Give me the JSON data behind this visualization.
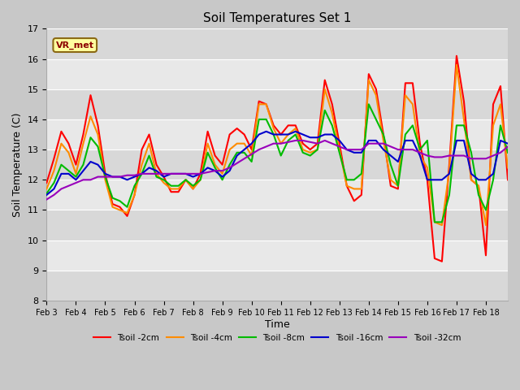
{
  "title": "Soil Temperatures Set 1",
  "xlabel": "Time",
  "ylabel": "Soil Temperature (C)",
  "ylim": [
    8.0,
    17.0
  ],
  "yticks": [
    8.0,
    9.0,
    10.0,
    11.0,
    12.0,
    13.0,
    14.0,
    15.0,
    16.0,
    17.0
  ],
  "xtick_labels": [
    "Feb 3",
    "Feb 4",
    "Feb 5",
    "Feb 6",
    "Feb 7",
    "Feb 8",
    "Feb 9",
    "Feb 10",
    "Feb 11",
    "Feb 12",
    "Feb 13",
    "Feb 14",
    "Feb 15",
    "Feb 16",
    "Feb 17",
    "Feb 18"
  ],
  "annotation_text": "VR_met",
  "band_colors": [
    "#d8d8d8",
    "#e8e8e8"
  ],
  "series": {
    "Tsoil -2cm": {
      "color": "#ff0000",
      "x": [
        0,
        0.25,
        0.5,
        0.75,
        1.0,
        1.25,
        1.5,
        1.75,
        2.0,
        2.25,
        2.5,
        2.75,
        3.0,
        3.25,
        3.5,
        3.75,
        4.0,
        4.25,
        4.5,
        4.75,
        5.0,
        5.25,
        5.5,
        5.75,
        6.0,
        6.25,
        6.5,
        6.75,
        7.0,
        7.25,
        7.5,
        7.75,
        8.0,
        8.25,
        8.5,
        8.75,
        9.0,
        9.25,
        9.5,
        9.75,
        10.0,
        10.25,
        10.5,
        10.75,
        11.0,
        11.25,
        11.5,
        11.75,
        12.0,
        12.25,
        12.5,
        12.75,
        13.0,
        13.25,
        13.5,
        13.75,
        14.0,
        14.25,
        14.5,
        14.75,
        15.0,
        15.25,
        15.5,
        15.75
      ],
      "y": [
        11.9,
        12.7,
        13.6,
        13.2,
        12.5,
        13.5,
        14.8,
        13.8,
        12.2,
        11.2,
        11.1,
        10.8,
        11.5,
        13.0,
        13.5,
        12.5,
        12.1,
        11.6,
        11.6,
        12.0,
        11.7,
        12.2,
        13.6,
        12.8,
        12.5,
        13.5,
        13.7,
        13.5,
        13.0,
        14.6,
        14.5,
        13.8,
        13.5,
        13.8,
        13.8,
        13.2,
        13.0,
        13.2,
        15.3,
        14.5,
        13.2,
        11.8,
        11.3,
        11.5,
        15.5,
        15.0,
        13.5,
        11.8,
        11.7,
        15.2,
        15.2,
        13.2,
        12.0,
        9.4,
        9.3,
        12.5,
        16.1,
        14.6,
        12.0,
        11.8,
        9.5,
        14.5,
        15.1,
        12.0
      ]
    },
    "Tsoil -4cm": {
      "color": "#ff8c00",
      "x": [
        0,
        0.25,
        0.5,
        0.75,
        1.0,
        1.25,
        1.5,
        1.75,
        2.0,
        2.25,
        2.5,
        2.75,
        3.0,
        3.25,
        3.5,
        3.75,
        4.0,
        4.25,
        4.5,
        4.75,
        5.0,
        5.25,
        5.5,
        5.75,
        6.0,
        6.25,
        6.5,
        6.75,
        7.0,
        7.25,
        7.5,
        7.75,
        8.0,
        8.25,
        8.5,
        8.75,
        9.0,
        9.25,
        9.5,
        9.75,
        10.0,
        10.25,
        10.5,
        10.75,
        11.0,
        11.25,
        11.5,
        11.75,
        12.0,
        12.25,
        12.5,
        12.75,
        13.0,
        13.25,
        13.5,
        13.75,
        14.0,
        14.25,
        14.5,
        14.75,
        15.0,
        15.25,
        15.5,
        15.75
      ],
      "y": [
        11.7,
        12.3,
        13.2,
        12.9,
        12.2,
        13.2,
        14.1,
        13.5,
        12.0,
        11.1,
        11.0,
        10.9,
        11.5,
        12.5,
        13.2,
        12.2,
        11.9,
        11.7,
        11.7,
        12.0,
        11.7,
        12.0,
        13.2,
        12.5,
        12.2,
        13.0,
        13.2,
        13.2,
        12.8,
        14.5,
        14.5,
        13.7,
        13.2,
        13.5,
        13.7,
        13.0,
        12.9,
        13.0,
        15.0,
        14.2,
        13.0,
        11.8,
        11.7,
        11.7,
        15.3,
        14.8,
        13.3,
        12.0,
        11.8,
        14.8,
        14.5,
        12.8,
        12.4,
        10.6,
        10.5,
        12.3,
        15.8,
        14.0,
        12.0,
        11.8,
        10.5,
        13.8,
        14.5,
        12.4
      ]
    },
    "Tsoil -8cm": {
      "color": "#00bb00",
      "x": [
        0,
        0.25,
        0.5,
        0.75,
        1.0,
        1.25,
        1.5,
        1.75,
        2.0,
        2.25,
        2.5,
        2.75,
        3.0,
        3.25,
        3.5,
        3.75,
        4.0,
        4.25,
        4.5,
        4.75,
        5.0,
        5.25,
        5.5,
        5.75,
        6.0,
        6.25,
        6.5,
        6.75,
        7.0,
        7.25,
        7.5,
        7.75,
        8.0,
        8.25,
        8.5,
        8.75,
        9.0,
        9.25,
        9.5,
        9.75,
        10.0,
        10.25,
        10.5,
        10.75,
        11.0,
        11.25,
        11.5,
        11.75,
        12.0,
        12.25,
        12.5,
        12.75,
        13.0,
        13.25,
        13.5,
        13.75,
        14.0,
        14.25,
        14.5,
        14.75,
        15.0,
        15.25,
        15.5,
        15.75
      ],
      "y": [
        11.55,
        11.9,
        12.5,
        12.3,
        12.1,
        12.5,
        13.4,
        13.1,
        12.1,
        11.4,
        11.3,
        11.1,
        11.8,
        12.2,
        12.8,
        12.1,
        12.0,
        11.8,
        11.8,
        12.0,
        11.8,
        12.0,
        12.9,
        12.4,
        12.0,
        12.5,
        12.9,
        12.9,
        12.6,
        14.0,
        14.0,
        13.5,
        12.8,
        13.3,
        13.5,
        12.9,
        12.8,
        13.0,
        14.3,
        13.8,
        12.9,
        12.0,
        12.0,
        12.2,
        14.5,
        14.0,
        13.5,
        12.5,
        11.8,
        13.5,
        13.8,
        13.0,
        13.3,
        10.6,
        10.6,
        11.5,
        13.8,
        13.8,
        12.9,
        11.5,
        11.0,
        12.0,
        13.8,
        12.9
      ]
    },
    "Tsoil -16cm": {
      "color": "#0000cc",
      "x": [
        0,
        0.25,
        0.5,
        0.75,
        1.0,
        1.25,
        1.5,
        1.75,
        2.0,
        2.25,
        2.5,
        2.75,
        3.0,
        3.25,
        3.5,
        3.75,
        4.0,
        4.25,
        4.5,
        4.75,
        5.0,
        5.25,
        5.5,
        5.75,
        6.0,
        6.25,
        6.5,
        6.75,
        7.0,
        7.25,
        7.5,
        7.75,
        8.0,
        8.25,
        8.5,
        8.75,
        9.0,
        9.25,
        9.5,
        9.75,
        10.0,
        10.25,
        10.5,
        10.75,
        11.0,
        11.25,
        11.5,
        11.75,
        12.0,
        12.25,
        12.5,
        12.75,
        13.0,
        13.25,
        13.5,
        13.75,
        14.0,
        14.25,
        14.5,
        14.75,
        15.0,
        15.25,
        15.5,
        15.75
      ],
      "y": [
        11.5,
        11.7,
        12.2,
        12.2,
        12.0,
        12.3,
        12.6,
        12.5,
        12.2,
        12.1,
        12.1,
        12.0,
        12.1,
        12.2,
        12.4,
        12.3,
        12.1,
        12.2,
        12.2,
        12.2,
        12.1,
        12.2,
        12.4,
        12.3,
        12.1,
        12.3,
        12.8,
        13.0,
        13.2,
        13.5,
        13.6,
        13.5,
        13.5,
        13.5,
        13.6,
        13.5,
        13.4,
        13.4,
        13.5,
        13.5,
        13.3,
        13.0,
        12.9,
        12.9,
        13.3,
        13.3,
        13.0,
        12.8,
        12.6,
        13.3,
        13.3,
        12.8,
        12.0,
        12.0,
        12.0,
        12.2,
        13.3,
        13.3,
        12.2,
        12.0,
        12.0,
        12.2,
        13.3,
        13.2
      ]
    },
    "Tsoil -32cm": {
      "color": "#9900bb",
      "x": [
        0,
        0.25,
        0.5,
        0.75,
        1.0,
        1.25,
        1.5,
        1.75,
        2.0,
        2.25,
        2.5,
        2.75,
        3.0,
        3.25,
        3.5,
        3.75,
        4.0,
        4.25,
        4.5,
        4.75,
        5.0,
        5.25,
        5.5,
        5.75,
        6.0,
        6.25,
        6.5,
        6.75,
        7.0,
        7.25,
        7.5,
        7.75,
        8.0,
        8.25,
        8.5,
        8.75,
        9.0,
        9.25,
        9.5,
        9.75,
        10.0,
        10.25,
        10.5,
        10.75,
        11.0,
        11.25,
        11.5,
        11.75,
        12.0,
        12.25,
        12.5,
        12.75,
        13.0,
        13.25,
        13.5,
        13.75,
        14.0,
        14.25,
        14.5,
        14.75,
        15.0,
        15.25,
        15.5,
        15.75
      ],
      "y": [
        11.35,
        11.5,
        11.7,
        11.8,
        11.9,
        12.0,
        12.0,
        12.1,
        12.1,
        12.1,
        12.1,
        12.15,
        12.15,
        12.2,
        12.2,
        12.2,
        12.2,
        12.2,
        12.2,
        12.2,
        12.2,
        12.2,
        12.25,
        12.3,
        12.3,
        12.4,
        12.55,
        12.7,
        12.85,
        13.0,
        13.1,
        13.2,
        13.2,
        13.25,
        13.3,
        13.3,
        13.25,
        13.2,
        13.3,
        13.2,
        13.1,
        13.0,
        13.0,
        13.0,
        13.2,
        13.2,
        13.2,
        13.1,
        13.0,
        13.0,
        13.0,
        12.9,
        12.8,
        12.75,
        12.75,
        12.8,
        12.8,
        12.8,
        12.7,
        12.7,
        12.7,
        12.8,
        12.9,
        13.1
      ]
    }
  },
  "fig_bg": "#c8c8c8",
  "plot_bg_light": "#e8e8e8",
  "plot_bg_dark": "#d8d8d8",
  "figsize": [
    6.4,
    4.8
  ],
  "dpi": 100
}
